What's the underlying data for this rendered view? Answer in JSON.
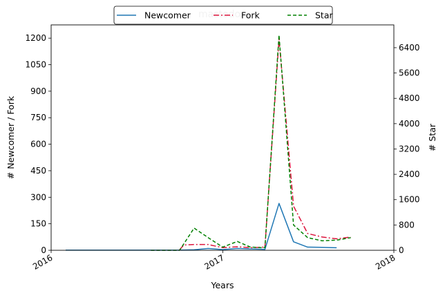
{
  "chart_data": {
    "type": "line",
    "title": "mastodon",
    "xlabel": "Years",
    "ylabel_left": "# Newcomer / Fork",
    "ylabel_right": "# Star",
    "x_ticks": [
      "2016",
      "2017",
      "2018"
    ],
    "x_tick_dates": [
      "2016-01-01",
      "2017-01-01",
      "2018-01-01"
    ],
    "xlim": [
      "2016-01-01",
      "2018-01-01"
    ],
    "ylim_left": [
      0,
      1275
    ],
    "yticks_left": [
      0,
      150,
      300,
      450,
      600,
      750,
      900,
      1050,
      1200
    ],
    "ylim_right": [
      0,
      7120
    ],
    "yticks_right": [
      0,
      800,
      1600,
      2400,
      3200,
      4000,
      4800,
      5600,
      6400
    ],
    "legend_position": "top-center",
    "grid": false,
    "series": [
      {
        "name": "Newcomer",
        "axis": "left",
        "color": "#1f77b4",
        "style": "solid",
        "x": [
          "2016-02-01",
          "2016-03-01",
          "2016-04-01",
          "2016-05-01",
          "2016-06-01",
          "2016-07-01",
          "2016-08-01",
          "2016-09-01",
          "2016-10-01",
          "2016-11-01",
          "2016-12-01",
          "2017-01-01",
          "2017-02-01",
          "2017-03-01",
          "2017-04-01",
          "2017-05-01",
          "2017-06-01",
          "2017-07-01",
          "2017-08-01",
          "2017-09-01"
        ],
        "y": [
          1,
          1,
          1,
          1,
          1,
          1,
          1,
          1,
          1,
          3,
          10,
          4,
          10,
          8,
          5,
          265,
          48,
          18,
          17,
          14
        ]
      },
      {
        "name": "Fork",
        "axis": "left",
        "color": "#dc143c",
        "style": "dashdot",
        "x": [
          "2016-10-01",
          "2016-10-10",
          "2016-11-01",
          "2016-12-01",
          "2017-01-01",
          "2017-02-01",
          "2017-03-01",
          "2017-04-01",
          "2017-05-01",
          "2017-06-01",
          "2017-07-01",
          "2017-08-01",
          "2017-09-01",
          "2017-10-01"
        ],
        "y": [
          3,
          30,
          33,
          33,
          15,
          20,
          15,
          18,
          1195,
          250,
          95,
          75,
          65,
          75
        ]
      },
      {
        "name": "Star",
        "axis": "right",
        "color": "#008000",
        "style": "dashed",
        "x": [
          "2016-08-01",
          "2016-09-01",
          "2016-10-01",
          "2016-11-01",
          "2016-12-01",
          "2017-01-01",
          "2017-02-01",
          "2017-03-01",
          "2017-04-01",
          "2017-05-01",
          "2017-06-01",
          "2017-07-01",
          "2017-08-01",
          "2017-09-01",
          "2017-10-01"
        ],
        "y": [
          0,
          0,
          0,
          700,
          400,
          100,
          280,
          100,
          80,
          6800,
          800,
          400,
          300,
          320,
          400
        ]
      }
    ]
  }
}
